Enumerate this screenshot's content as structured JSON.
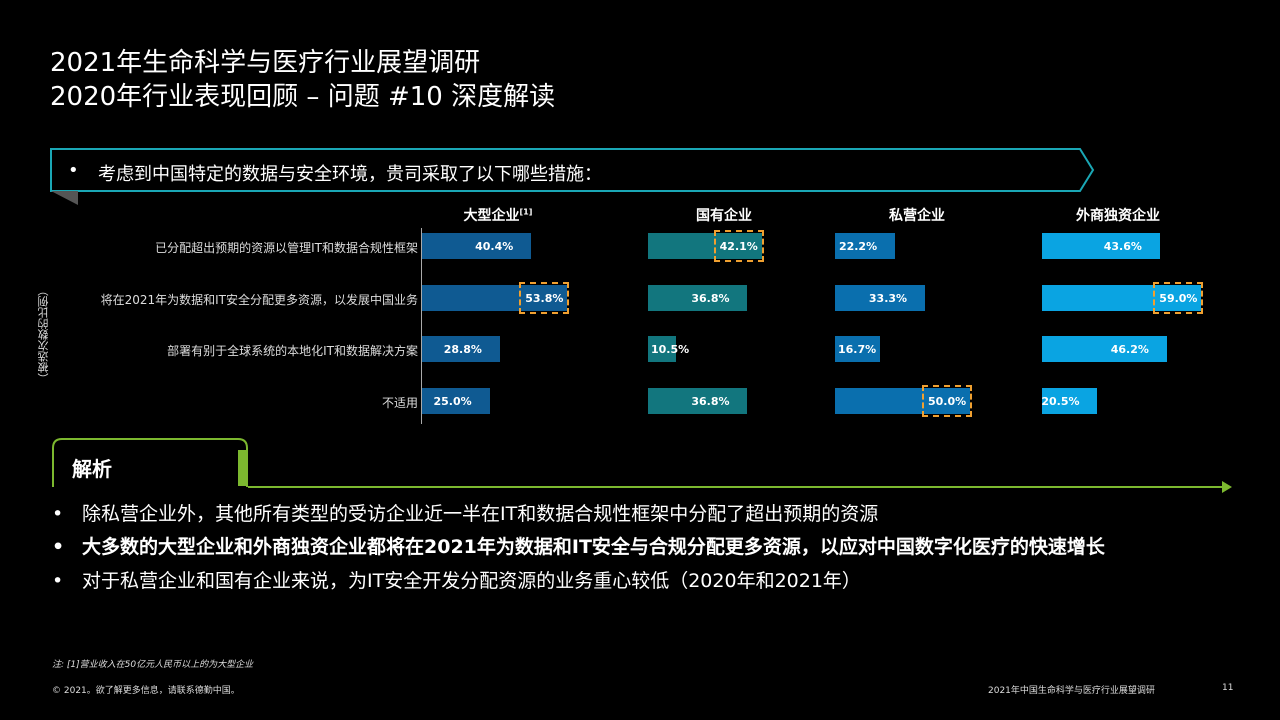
{
  "title": {
    "line1": "2021年生命科学与医疗行业展望调研",
    "line2": "2020年行业表现回顾 – 问题 #10 深度解读"
  },
  "question": {
    "bullet": "•",
    "text": "考虑到中国特定的数据与安全环境，贵司采取了以下哪些措施："
  },
  "side_label": "（被选次数的比例）",
  "chart_data": {
    "type": "bar",
    "categories": [
      "已分配超出预期的资源以管理IT和数据合规性框架",
      "将在2021年为数据和IT安全分配更多资源，以发展中国业务",
      "部署有别于全球系统的本地化IT和数据解决方案",
      "不适用"
    ],
    "series": [
      {
        "name": "大型企业",
        "sup": "[1]",
        "color": "#0f5a92",
        "values": [
          40.4,
          53.8,
          28.8,
          25.0
        ],
        "labels": [
          "40.4%",
          "53.8%",
          "28.8%",
          "25.0%"
        ],
        "highlight": [
          false,
          true,
          false,
          false
        ]
      },
      {
        "name": "国有企业",
        "sup": "",
        "color": "#12767e",
        "values": [
          42.1,
          36.8,
          10.5,
          36.8
        ],
        "labels": [
          "42.1%",
          "36.8%",
          "10.5%",
          "36.8%"
        ],
        "highlight": [
          true,
          false,
          false,
          false
        ]
      },
      {
        "name": "私营企业",
        "sup": "",
        "color": "#0a6fae",
        "values": [
          22.2,
          33.3,
          16.7,
          50.0
        ],
        "labels": [
          "22.2%",
          "33.3%",
          "16.7%",
          "50.0%"
        ],
        "highlight": [
          false,
          false,
          false,
          true
        ]
      },
      {
        "name": "外商独资企业",
        "sup": "",
        "color": "#0aa4e2",
        "values": [
          43.6,
          59.0,
          46.2,
          20.5
        ],
        "labels": [
          "43.6%",
          "59.0%",
          "46.2%",
          "20.5%"
        ],
        "highlight": [
          false,
          true,
          false,
          false
        ]
      }
    ],
    "highlight_color": "#f0a030"
  },
  "analysis": {
    "heading": "解析",
    "bullet": "•",
    "points": [
      {
        "text": "除私营企业外，其他所有类型的受访企业近一半在IT和数据合规性框架中分配了超出预期的资源",
        "bold": false
      },
      {
        "text": "大多数的大型企业和外商独资企业都将在2021年为数据和IT安全与合规分配更多资源，以应对中国数字化医疗的快速增长",
        "bold": true
      },
      {
        "text": "对于私营企业和国有企业来说，为IT安全开发分配资源的业务重心较低（2020年和2021年）",
        "bold": false
      }
    ],
    "accent_color": "#7cb82f"
  },
  "note": "注: [1]营业收入在50亿元人民币以上的为大型企业",
  "footer": {
    "left": "© 2021。欲了解更多信息，请联系德勤中国。",
    "right": "2021年中国生命科学与医疗行业展望调研",
    "page": "11"
  }
}
